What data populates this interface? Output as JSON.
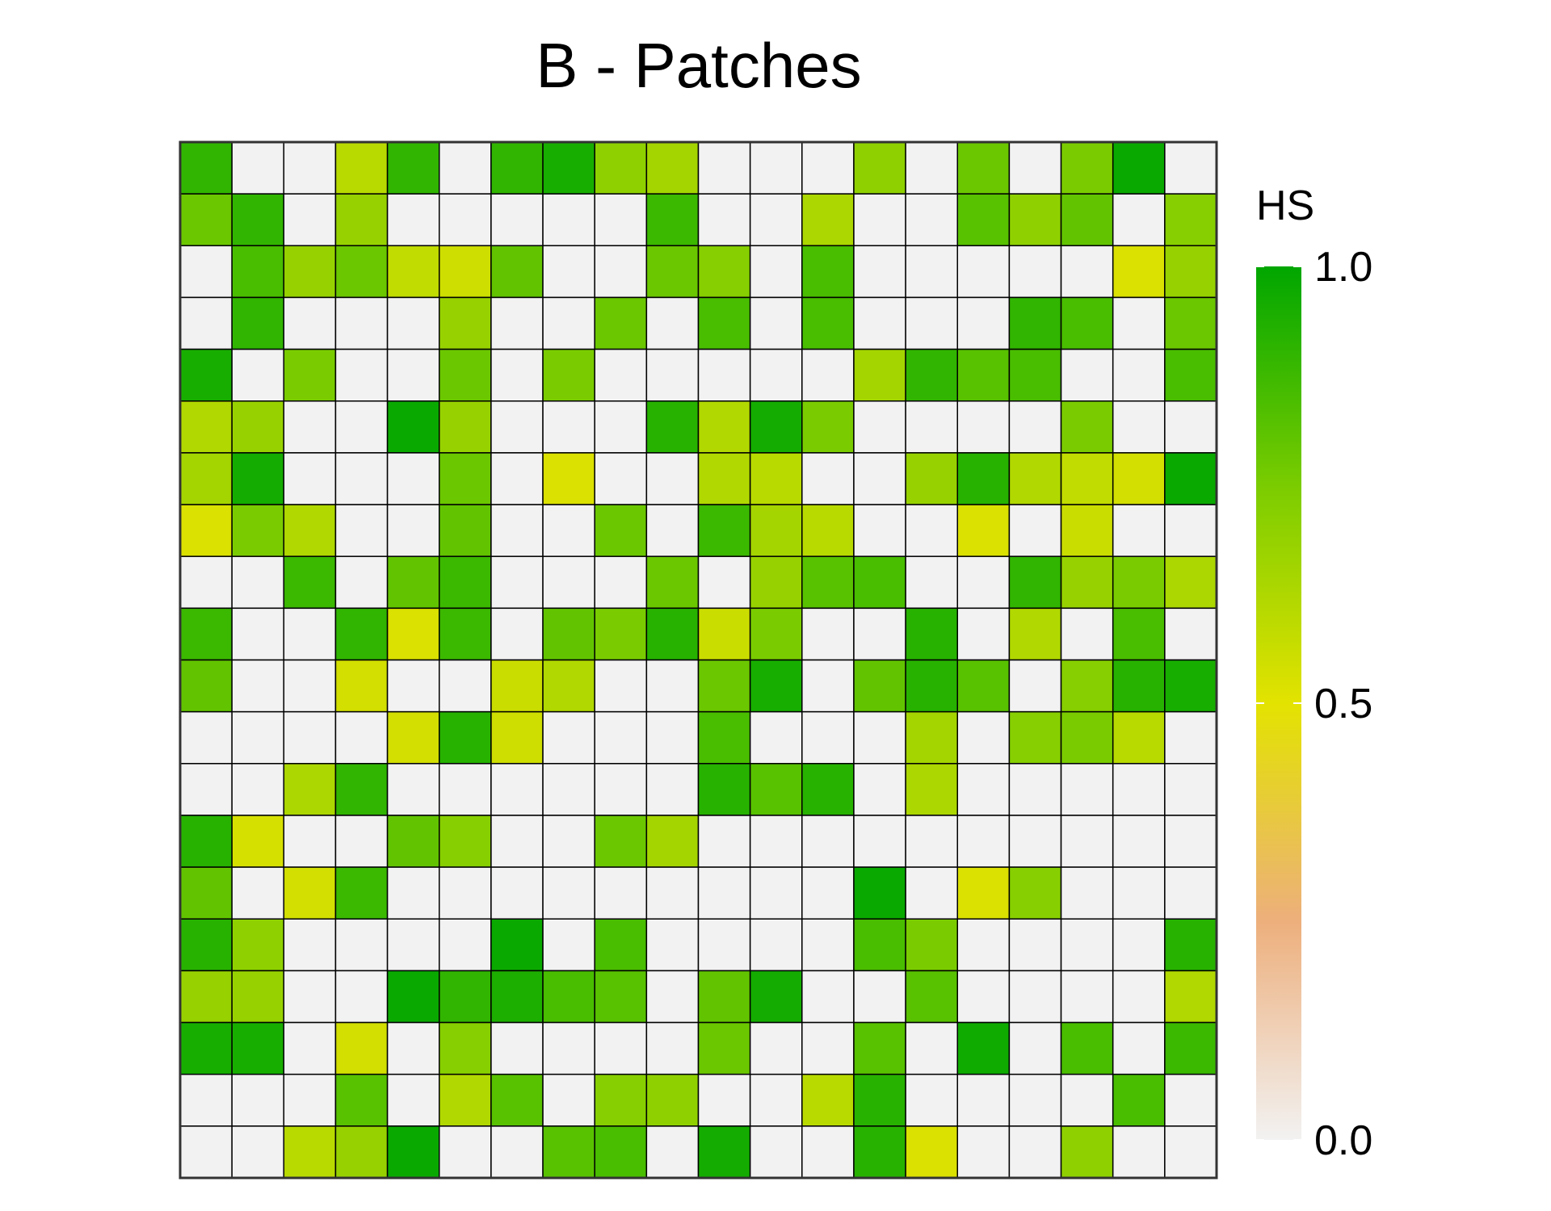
{
  "chart_data": {
    "type": "heatmap",
    "title": "B - Patches",
    "legend": {
      "title": "HS",
      "ticks": [
        {
          "label": "1.0",
          "value": 1.0
        },
        {
          "label": "0.5",
          "value": 0.5
        },
        {
          "label": "0.0",
          "value": 0.0
        }
      ],
      "range": [
        0,
        1
      ],
      "colors": {
        "0.0": "#F2F2F2",
        "0.25": "#EDAF7C",
        "0.5": "#E3E300",
        "0.75": "#7ACC00",
        "1.0": "#00A600"
      },
      "placement": "right"
    },
    "empty_color": "#F2F2F2",
    "grid": {
      "rows": 20,
      "cols": 20,
      "values": [
        [
          0.9,
          0,
          0,
          0.6,
          0.9,
          0,
          0.9,
          0.95,
          0.7,
          0.65,
          0,
          0,
          0,
          0.7,
          0,
          0.78,
          0,
          0.75,
          0.98,
          0
        ],
        [
          0.78,
          0.9,
          0,
          0.68,
          0,
          0,
          0,
          0,
          0,
          0.88,
          0,
          0,
          0.63,
          0,
          0,
          0.82,
          0.7,
          0.8,
          0,
          0.72
        ],
        [
          0,
          0.85,
          0.68,
          0.78,
          0.58,
          0.55,
          0.8,
          0,
          0,
          0.78,
          0.72,
          0,
          0.85,
          0,
          0,
          0,
          0,
          0,
          0.52,
          0.68
        ],
        [
          0,
          0.9,
          0,
          0,
          0,
          0.68,
          0,
          0,
          0.78,
          0,
          0.85,
          0,
          0.85,
          0,
          0,
          0,
          0.9,
          0.85,
          0,
          0.78
        ],
        [
          0.95,
          0,
          0.75,
          0,
          0,
          0.78,
          0,
          0.75,
          0,
          0,
          0,
          0,
          0,
          0.65,
          0.9,
          0.82,
          0.85,
          0,
          0,
          0.85
        ],
        [
          0.62,
          0.68,
          0,
          0,
          0.98,
          0.68,
          0,
          0,
          0,
          0.92,
          0.62,
          0.96,
          0.75,
          0,
          0,
          0,
          0,
          0.75,
          0,
          0
        ],
        [
          0.65,
          0.96,
          0,
          0,
          0,
          0.78,
          0,
          0.52,
          0,
          0,
          0.62,
          0.6,
          0,
          0,
          0.68,
          0.92,
          0.62,
          0.58,
          0.54,
          0.98
        ],
        [
          0.52,
          0.75,
          0.62,
          0,
          0,
          0.8,
          0,
          0,
          0.78,
          0,
          0.88,
          0.65,
          0.6,
          0,
          0,
          0.52,
          0,
          0.56,
          0,
          0
        ],
        [
          0,
          0,
          0.88,
          0,
          0.8,
          0.88,
          0,
          0,
          0,
          0.78,
          0,
          0.68,
          0.82,
          0.85,
          0,
          0,
          0.9,
          0.68,
          0.75,
          0.63
        ],
        [
          0.88,
          0,
          0,
          0.9,
          0.52,
          0.88,
          0,
          0.8,
          0.75,
          0.92,
          0.56,
          0.75,
          0,
          0,
          0.92,
          0,
          0.62,
          0,
          0.85,
          0
        ],
        [
          0.8,
          0,
          0,
          0.54,
          0,
          0,
          0.56,
          0.62,
          0,
          0,
          0.78,
          0.95,
          0,
          0.8,
          0.92,
          0.82,
          0,
          0.72,
          0.92,
          0.95
        ],
        [
          0,
          0,
          0,
          0,
          0.54,
          0.92,
          0.55,
          0,
          0,
          0,
          0.85,
          0,
          0,
          0,
          0.65,
          0,
          0.72,
          0.75,
          0.6,
          0
        ],
        [
          0,
          0,
          0.63,
          0.9,
          0,
          0,
          0,
          0,
          0,
          0,
          0.92,
          0.82,
          0.92,
          0,
          0.63,
          0,
          0,
          0,
          0,
          0
        ],
        [
          0.92,
          0.53,
          0,
          0,
          0.8,
          0.72,
          0,
          0,
          0.78,
          0.65,
          0,
          0,
          0,
          0,
          0,
          0,
          0,
          0,
          0,
          0
        ],
        [
          0.8,
          0,
          0.54,
          0.88,
          0,
          0,
          0,
          0,
          0,
          0,
          0,
          0,
          0,
          0.98,
          0,
          0.52,
          0.72,
          0,
          0,
          0
        ],
        [
          0.92,
          0.7,
          0,
          0,
          0,
          0,
          0.98,
          0,
          0.85,
          0,
          0,
          0,
          0,
          0.85,
          0.75,
          0,
          0,
          0,
          0,
          0.92
        ],
        [
          0.68,
          0.68,
          0,
          0,
          0.98,
          0.9,
          0.94,
          0.85,
          0.82,
          0,
          0.8,
          0.96,
          0,
          0,
          0.82,
          0,
          0,
          0,
          0,
          0.62
        ],
        [
          0.95,
          0.95,
          0,
          0.54,
          0,
          0.72,
          0,
          0,
          0,
          0,
          0.78,
          0,
          0,
          0.82,
          0,
          0.97,
          0,
          0.85,
          0,
          0.88
        ],
        [
          0,
          0,
          0,
          0.82,
          0,
          0.62,
          0.82,
          0,
          0.72,
          0.7,
          0,
          0,
          0.6,
          0.92,
          0,
          0,
          0,
          0,
          0.85,
          0
        ],
        [
          0,
          0,
          0.6,
          0.68,
          0.98,
          0,
          0,
          0.82,
          0.85,
          0,
          0.96,
          0,
          0,
          0.92,
          0.52,
          0,
          0,
          0.7,
          0,
          0
        ]
      ]
    }
  }
}
